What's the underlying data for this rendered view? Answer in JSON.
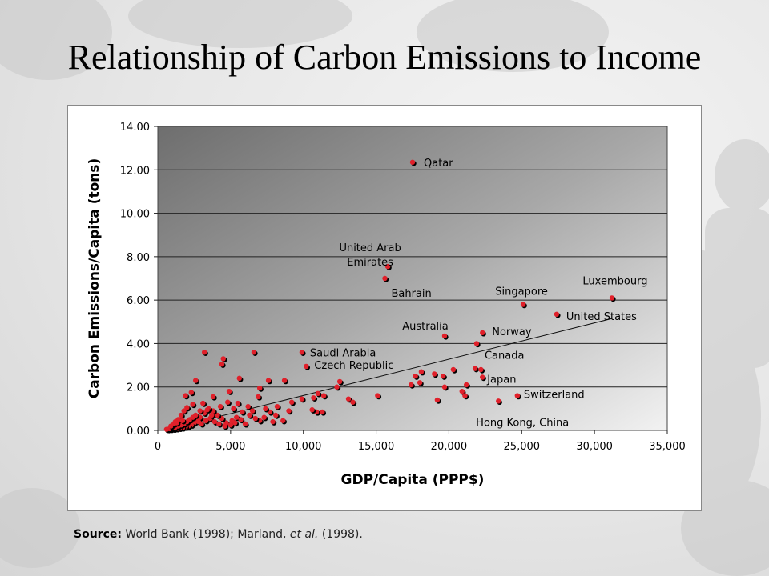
{
  "slide": {
    "title": "Relationship of Carbon Emissions to Income"
  },
  "source": {
    "label": "Source:",
    "text_a": "World Bank (1998);",
    "text_b": "Marland,",
    "text_c": "et al.",
    "text_d": "(1998)."
  },
  "chart_data": {
    "type": "scatter",
    "xlabel": "GDP/Capita (PPP$)",
    "ylabel": "Carbon Emissions/Capita (tons)",
    "xlim": [
      0,
      35000
    ],
    "ylim": [
      0,
      14
    ],
    "xticks": [
      "0",
      "5,000",
      "10,000",
      "15,000",
      "20,000",
      "25,000",
      "30,000",
      "35,000"
    ],
    "yticks": [
      "0.00",
      "2.00",
      "4.00",
      "6.00",
      "8.00",
      "10.00",
      "12.00",
      "14.00"
    ],
    "grid": "horizontal",
    "marker_color": "#e0202a",
    "plot_background": "gray gradient",
    "labeled_points": [
      {
        "label": "Qatar",
        "x": 17500,
        "y": 12.35
      },
      {
        "label": "United Arab Emirates",
        "x": 15800,
        "y": 7.55
      },
      {
        "label": "Bahrain",
        "x": 15600,
        "y": 7.0
      },
      {
        "label": "Singapore",
        "x": 25100,
        "y": 5.8
      },
      {
        "label": "Luxembourg",
        "x": 31200,
        "y": 6.1
      },
      {
        "label": "United States",
        "x": 27400,
        "y": 5.35
      },
      {
        "label": "Australia",
        "x": 19700,
        "y": 4.35
      },
      {
        "label": "Norway",
        "x": 22300,
        "y": 4.5
      },
      {
        "label": "Canada",
        "x": 21900,
        "y": 4.0
      },
      {
        "label": "Saudi Arabia",
        "x": 9900,
        "y": 3.6
      },
      {
        "label": "Czech Republic",
        "x": 10200,
        "y": 2.95
      },
      {
        "label": "Japan",
        "x": 22300,
        "y": 2.45
      },
      {
        "label": "Switzerland",
        "x": 24700,
        "y": 1.6
      },
      {
        "label": "Hong Kong, China",
        "x": 23400,
        "y": 1.35
      }
    ],
    "points": [
      [
        17500,
        12.35
      ],
      [
        15800,
        7.55
      ],
      [
        15600,
        7.0
      ],
      [
        25100,
        5.8
      ],
      [
        31200,
        6.1
      ],
      [
        27400,
        5.35
      ],
      [
        19700,
        4.35
      ],
      [
        22300,
        4.5
      ],
      [
        21900,
        4.0
      ],
      [
        9900,
        3.6
      ],
      [
        10200,
        2.95
      ],
      [
        22300,
        2.45
      ],
      [
        24700,
        1.6
      ],
      [
        23400,
        1.35
      ],
      [
        3200,
        3.6
      ],
      [
        4500,
        3.3
      ],
      [
        4400,
        3.05
      ],
      [
        6600,
        3.6
      ],
      [
        5600,
        2.4
      ],
      [
        7600,
        2.3
      ],
      [
        8700,
        2.3
      ],
      [
        2600,
        2.3
      ],
      [
        7000,
        1.95
      ],
      [
        6900,
        1.55
      ],
      [
        4900,
        1.8
      ],
      [
        3800,
        1.55
      ],
      [
        1900,
        1.6
      ],
      [
        2300,
        1.75
      ],
      [
        9200,
        1.3
      ],
      [
        9900,
        1.45
      ],
      [
        10700,
        1.5
      ],
      [
        11000,
        1.7
      ],
      [
        11400,
        1.6
      ],
      [
        12300,
        2.0
      ],
      [
        12500,
        2.25
      ],
      [
        13100,
        1.45
      ],
      [
        13400,
        1.3
      ],
      [
        15100,
        1.6
      ],
      [
        17400,
        2.1
      ],
      [
        17700,
        2.5
      ],
      [
        18000,
        2.2
      ],
      [
        18100,
        2.7
      ],
      [
        19000,
        2.6
      ],
      [
        19200,
        1.4
      ],
      [
        19600,
        2.5
      ],
      [
        19700,
        2.0
      ],
      [
        20300,
        2.8
      ],
      [
        20900,
        1.8
      ],
      [
        21100,
        1.6
      ],
      [
        21200,
        2.1
      ],
      [
        21800,
        2.85
      ],
      [
        22200,
        2.8
      ],
      [
        10900,
        0.85
      ],
      [
        11300,
        0.85
      ],
      [
        10600,
        0.95
      ],
      [
        8600,
        0.45
      ],
      [
        8100,
        0.7
      ],
      [
        7700,
        0.85
      ],
      [
        7300,
        0.6
      ],
      [
        7000,
        0.45
      ],
      [
        6700,
        0.55
      ],
      [
        6300,
        0.7
      ],
      [
        5800,
        0.85
      ],
      [
        5400,
        0.6
      ],
      [
        5100,
        0.45
      ],
      [
        4700,
        0.35
      ],
      [
        4400,
        0.55
      ],
      [
        4100,
        0.7
      ],
      [
        3800,
        0.9
      ],
      [
        3500,
        1.0
      ],
      [
        3200,
        0.8
      ],
      [
        2900,
        0.6
      ],
      [
        2700,
        0.45
      ],
      [
        2500,
        0.35
      ],
      [
        2300,
        0.25
      ],
      [
        2100,
        0.2
      ],
      [
        1900,
        0.15
      ],
      [
        1700,
        0.12
      ],
      [
        1500,
        0.1
      ],
      [
        1300,
        0.08
      ],
      [
        1100,
        0.06
      ],
      [
        900,
        0.05
      ],
      [
        700,
        0.04
      ],
      [
        600,
        0.05
      ],
      [
        800,
        0.08
      ],
      [
        1000,
        0.12
      ],
      [
        1200,
        0.15
      ],
      [
        1400,
        0.2
      ],
      [
        1600,
        0.25
      ],
      [
        1800,
        0.3
      ],
      [
        2000,
        0.4
      ],
      [
        2200,
        0.5
      ],
      [
        2400,
        0.6
      ],
      [
        2600,
        0.7
      ],
      [
        2800,
        0.4
      ],
      [
        3000,
        0.3
      ],
      [
        3300,
        0.45
      ],
      [
        3600,
        0.55
      ],
      [
        3900,
        0.4
      ],
      [
        4200,
        0.3
      ],
      [
        4600,
        0.2
      ],
      [
        5000,
        0.25
      ],
      [
        5300,
        0.35
      ],
      [
        5700,
        0.5
      ],
      [
        6000,
        0.3
      ],
      [
        6200,
        1.1
      ],
      [
        6500,
        0.9
      ],
      [
        7400,
        1.0
      ],
      [
        7900,
        0.4
      ],
      [
        8200,
        1.1
      ],
      [
        9000,
        0.9
      ],
      [
        1600,
        0.7
      ],
      [
        1800,
        0.9
      ],
      [
        2000,
        1.05
      ],
      [
        2400,
        1.2
      ],
      [
        3100,
        1.25
      ],
      [
        3400,
        0.95
      ],
      [
        4300,
        1.1
      ],
      [
        4800,
        1.3
      ],
      [
        5200,
        1.0
      ],
      [
        5500,
        1.25
      ],
      [
        1200,
        0.4
      ],
      [
        1400,
        0.5
      ],
      [
        1700,
        0.45
      ],
      [
        2900,
        0.9
      ],
      [
        3700,
        0.7
      ],
      [
        900,
        0.2
      ],
      [
        1100,
        0.3
      ],
      [
        1300,
        0.35
      ]
    ],
    "trendline": {
      "x": [
        500,
        31200
      ],
      "y": [
        0.02,
        5.15
      ]
    }
  }
}
